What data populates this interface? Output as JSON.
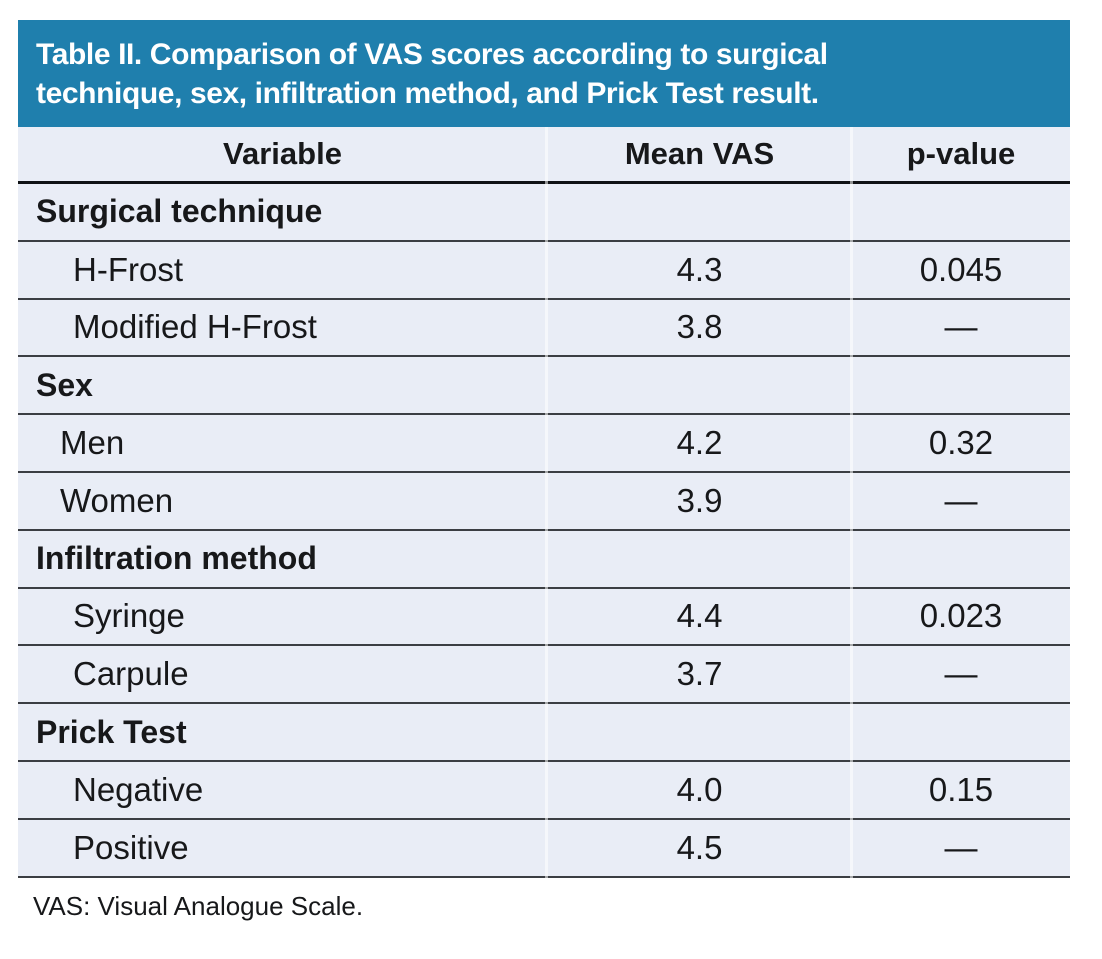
{
  "table": {
    "title": "Table II. Comparison of VAS scores according to surgical technique, sex, infiltration method, and Prick Test result.",
    "columns": [
      "Variable",
      "Mean VAS",
      "p-value"
    ],
    "sections": [
      {
        "header": "Surgical technique",
        "rows": [
          {
            "label": "H-Frost",
            "mean_vas": "4.3",
            "p_value": "0.045",
            "indent": 2
          },
          {
            "label": "Modified H-Frost",
            "mean_vas": "3.8",
            "p_value": "—",
            "indent": 2
          }
        ]
      },
      {
        "header": "Sex",
        "rows": [
          {
            "label": "Men",
            "mean_vas": "4.2",
            "p_value": "0.32",
            "indent": 1
          },
          {
            "label": "Women",
            "mean_vas": "3.9",
            "p_value": "—",
            "indent": 1
          }
        ]
      },
      {
        "header": "Infiltration method",
        "rows": [
          {
            "label": "Syringe",
            "mean_vas": "4.4",
            "p_value": "0.023",
            "indent": 2
          },
          {
            "label": "Carpule",
            "mean_vas": "3.7",
            "p_value": "—",
            "indent": 2
          }
        ]
      },
      {
        "header": "Prick Test",
        "rows": [
          {
            "label": "Negative",
            "mean_vas": "4.0",
            "p_value": "0.15",
            "indent": 2
          },
          {
            "label": "Positive",
            "mean_vas": "4.5",
            "p_value": "—",
            "indent": 2
          }
        ]
      }
    ],
    "footnote": "VAS: Visual Analogue Scale."
  },
  "colors": {
    "band": "#1f7fad",
    "row_bg": "#e9edf6",
    "rule": "#3b3e43",
    "rule_strong": "#101215",
    "text": "#17181a"
  }
}
